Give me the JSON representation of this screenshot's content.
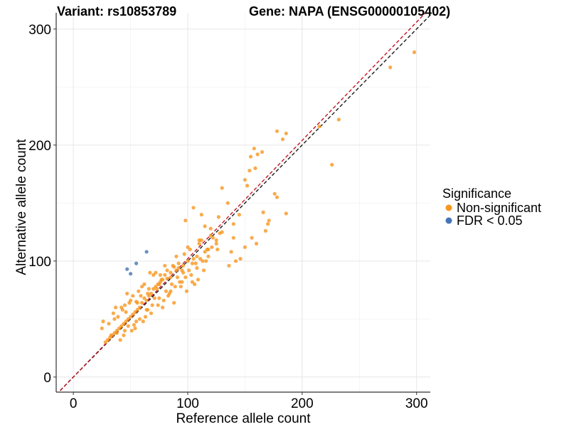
{
  "chart_data": {
    "type": "scatter",
    "title_variant": "Variant: rs10853789",
    "title_gene": "Gene: NAPA (ENSG00000105402)",
    "xlabel": "Reference allele count",
    "ylabel": "Alternative allele count",
    "xlim": [
      -15,
      312
    ],
    "ylim": [
      -13,
      314
    ],
    "x_ticks": [
      0,
      100,
      200,
      300
    ],
    "y_ticks": [
      0,
      100,
      200,
      300
    ],
    "x_tick_labels": [
      "0",
      "100",
      "200",
      "300"
    ],
    "y_tick_labels": [
      "0",
      "100",
      "200",
      "300"
    ],
    "grid": true,
    "legend": {
      "title": "Significance",
      "position": "right",
      "entries": [
        {
          "label": "Non-significant",
          "color": "#F8961E"
        },
        {
          "label": "FDR < 0.05",
          "color": "#4575B4"
        }
      ]
    },
    "reference_lines": [
      {
        "name": "identity",
        "slope": 1.0,
        "intercept": 0,
        "color": "#1a1a1a",
        "style": "dashed"
      },
      {
        "name": "fit",
        "slope": 1.02,
        "intercept": 0,
        "color": "#C1121F",
        "style": "dashed"
      }
    ],
    "series": [
      {
        "name": "Non-significant",
        "color": "#F8961E",
        "x": [
          298,
          277,
          232,
          226,
          215,
          186,
          183,
          178,
          165,
          161,
          158,
          159,
          155,
          154,
          152,
          150,
          186,
          178,
          171,
          168,
          170,
          130,
          120,
          115,
          112,
          105,
          98,
          110,
          135,
          145,
          160,
          128,
          138,
          142,
          150,
          140,
          125,
          118,
          108,
          104,
          100,
          96,
          92,
          90,
          88,
          85,
          82,
          80,
          78,
          76,
          74,
          72,
          70,
          68,
          66,
          64,
          62,
          60,
          58,
          56,
          54,
          52,
          50,
          48,
          46,
          44,
          42,
          40,
          38,
          36,
          34,
          32,
          30,
          28,
          26,
          25,
          35,
          45,
          55,
          65,
          75,
          85,
          95,
          105,
          115,
          125,
          80,
          90,
          70,
          60,
          50,
          100,
          110,
          120,
          130,
          140,
          95,
          85,
          75,
          65,
          55,
          45,
          72,
          82,
          92,
          62,
          52,
          42,
          102,
          112,
          122,
          88,
          78,
          68,
          58,
          48,
          38,
          98,
          108,
          118,
          73,
          83,
          93,
          63,
          53,
          43,
          33,
          103,
          113,
          79,
          89,
          69,
          59,
          49,
          39,
          99,
          109,
          77,
          87,
          67,
          57,
          47,
          37,
          97,
          107,
          117,
          127,
          71,
          81,
          91,
          61,
          51,
          41,
          31,
          101,
          111,
          121,
          84,
          74,
          64,
          54,
          44,
          94,
          104,
          114,
          86,
          76,
          66,
          56,
          46,
          36,
          96,
          106,
          116,
          126,
          136,
          146,
          156,
          166,
          176
        ],
        "y": [
          280,
          267,
          222,
          183,
          216,
          210,
          205,
          212,
          194,
          192,
          197,
          180,
          190,
          178,
          165,
          170,
          141,
          155,
          135,
          126,
          132,
          163,
          128,
          130,
          140,
          146,
          135,
          118,
          150,
          140,
          115,
          124,
          108,
          100,
          112,
          120,
          115,
          110,
          104,
          98,
          100,
          96,
          94,
          92,
          95,
          90,
          85,
          88,
          84,
          82,
          80,
          78,
          76,
          72,
          70,
          66,
          68,
          64,
          60,
          58,
          56,
          54,
          52,
          50,
          48,
          46,
          44,
          42,
          40,
          38,
          36,
          34,
          32,
          30,
          48,
          42,
          55,
          62,
          65,
          72,
          80,
          86,
          92,
          102,
          108,
          118,
          96,
          104,
          88,
          78,
          66,
          112,
          115,
          122,
          125,
          132,
          82,
          74,
          68,
          58,
          48,
          40,
          90,
          92,
          98,
          80,
          70,
          60,
          110,
          118,
          120,
          64,
          60,
          55,
          50,
          44,
          38,
          86,
          94,
          104,
          76,
          70,
          82,
          52,
          45,
          58,
          36,
          88,
          100,
          66,
          78,
          62,
          70,
          64,
          52,
          74,
          84,
          84,
          96,
          90,
          74,
          72,
          60,
          106,
          98,
          110,
          138,
          68,
          74,
          86,
          48,
          40,
          32,
          46,
          92,
          102,
          112,
          72,
          62,
          58,
          42,
          36,
          78,
          82,
          92,
          80,
          88,
          76,
          64,
          56,
          50,
          90,
          80,
          100,
          110,
          96,
          102,
          120,
          142,
          158
        ]
      },
      {
        "name": "FDR < 0.05",
        "color": "#4575B4",
        "x": [
          64,
          55,
          47,
          50
        ],
        "y": [
          108,
          98,
          93,
          89
        ]
      }
    ]
  }
}
